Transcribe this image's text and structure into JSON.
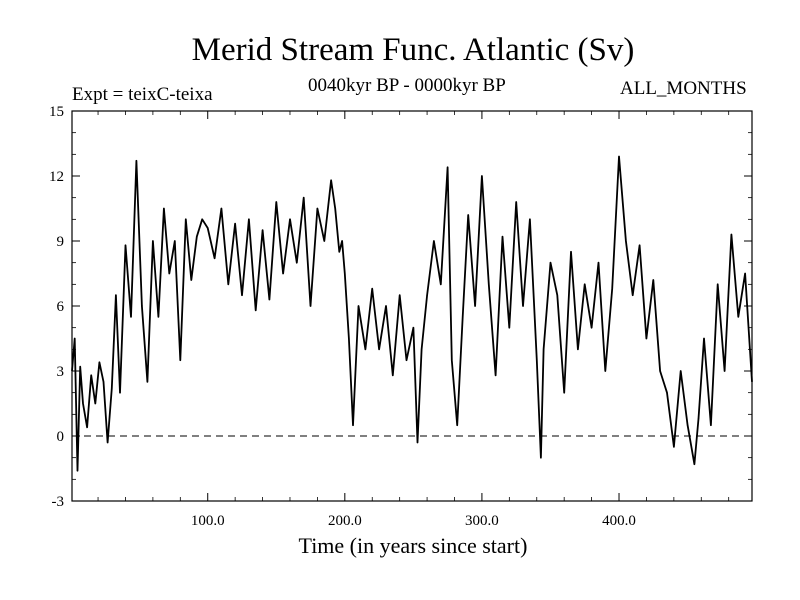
{
  "chart_data": {
    "type": "line",
    "title": "Merid Stream Func. Atlantic (Sv)",
    "subtitle_left": "Expt = teixC-teixa",
    "subtitle_center": "0040kyr BP - 0000kyr BP",
    "subtitle_right": "ALL_MONTHS",
    "xlabel": "Time (in years since start)",
    "ylabel": "",
    "xlim": [
      1,
      497
    ],
    "ylim": [
      -3,
      15
    ],
    "x_ticks": [
      100,
      200,
      300,
      400
    ],
    "x_tick_labels": [
      "100.0",
      "200.0",
      "300.0",
      "400.0"
    ],
    "y_ticks": [
      -3,
      0,
      3,
      6,
      9,
      12,
      15
    ],
    "y_tick_labels": [
      "-3",
      "0",
      "3",
      "6",
      "9",
      "12",
      "15"
    ],
    "reference_line": {
      "y": 0,
      "style": "dashed"
    },
    "series": [
      {
        "name": "Expt = teixC-teixa",
        "x": [
          1,
          3,
          5,
          7,
          9,
          12,
          15,
          18,
          21,
          24,
          27,
          30,
          33,
          36,
          40,
          44,
          48,
          52,
          56,
          60,
          64,
          68,
          72,
          76,
          80,
          84,
          88,
          92,
          96,
          100,
          105,
          110,
          115,
          120,
          125,
          130,
          135,
          140,
          145,
          150,
          155,
          160,
          165,
          170,
          175,
          180,
          185,
          190,
          193,
          196,
          198,
          200,
          203,
          206,
          210,
          215,
          220,
          225,
          230,
          235,
          240,
          245,
          250,
          253,
          256,
          260,
          265,
          270,
          275,
          278,
          282,
          286,
          290,
          295,
          300,
          305,
          310,
          315,
          320,
          325,
          330,
          335,
          340,
          343,
          345,
          350,
          355,
          360,
          365,
          370,
          375,
          380,
          385,
          390,
          395,
          400,
          405,
          410,
          415,
          420,
          425,
          430,
          435,
          440,
          445,
          450,
          455,
          458,
          462,
          467,
          472,
          477,
          482,
          487,
          492,
          497
        ],
        "values": [
          3.0,
          4.5,
          -1.6,
          3.2,
          1.5,
          0.4,
          2.8,
          1.5,
          3.4,
          2.5,
          -0.3,
          2.2,
          6.5,
          2.0,
          8.8,
          5.5,
          12.7,
          6.0,
          2.5,
          9.0,
          5.5,
          10.5,
          7.5,
          9.0,
          3.5,
          10.0,
          7.2,
          9.2,
          10.0,
          9.6,
          8.2,
          10.5,
          7.0,
          9.8,
          6.5,
          10.0,
          5.8,
          9.5,
          6.3,
          10.8,
          7.5,
          10.0,
          8.0,
          11.0,
          6.0,
          10.5,
          9.0,
          11.8,
          10.5,
          8.5,
          9.0,
          7.5,
          4.5,
          0.5,
          6.0,
          4.0,
          6.8,
          4.0,
          6.0,
          2.8,
          6.5,
          3.5,
          5.0,
          -0.3,
          4.0,
          6.5,
          9.0,
          7.0,
          12.4,
          3.5,
          0.5,
          5.5,
          10.2,
          6.0,
          12.0,
          7.0,
          2.8,
          9.2,
          5.0,
          10.8,
          6.0,
          10.0,
          3.5,
          -1.0,
          4.0,
          8.0,
          6.5,
          2.0,
          8.5,
          4.0,
          7.0,
          5.0,
          8.0,
          3.0,
          6.8,
          12.9,
          9.0,
          6.5,
          8.8,
          4.5,
          7.2,
          3.0,
          2.0,
          -0.5,
          3.0,
          0.5,
          -1.3,
          0.8,
          4.5,
          0.5,
          7.0,
          3.0,
          9.3,
          5.5,
          7.5,
          2.5
        ]
      }
    ]
  }
}
